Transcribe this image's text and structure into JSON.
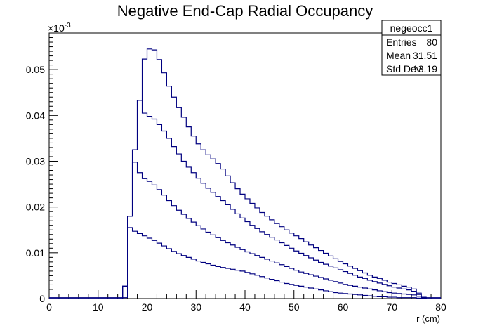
{
  "chart_data": {
    "type": "line",
    "title": "Negative End-Cap Radial Occupancy",
    "xlabel": "r (cm)",
    "ylabel": "",
    "y_exponent_label": "×10",
    "y_exponent": "-3",
    "xlim": [
      0,
      80
    ],
    "ylim": [
      0,
      0.058
    ],
    "x_ticks": [
      0,
      10,
      20,
      30,
      40,
      50,
      60,
      70,
      80
    ],
    "y_ticks": [
      0,
      0.01,
      0.02,
      0.03,
      0.04,
      0.05
    ],
    "y_tick_labels": [
      "0",
      "0.01",
      "0.02",
      "0.03",
      "0.04",
      "0.05"
    ],
    "x_tick_labels": [
      "0",
      "10",
      "20",
      "30",
      "40",
      "50",
      "60",
      "70",
      "80"
    ],
    "bin_edges_start": 0,
    "bin_width": 1,
    "line_color": "#000080",
    "series": [
      {
        "values": [
          0,
          0,
          0,
          0,
          0,
          0,
          0,
          0,
          0,
          0,
          0,
          0,
          0,
          0,
          0,
          0.0027,
          0.018,
          0.0325,
          0.0433,
          0.0523,
          0.0545,
          0.0543,
          0.0522,
          0.0493,
          0.0464,
          0.044,
          0.0417,
          0.0396,
          0.0375,
          0.0355,
          0.0338,
          0.0325,
          0.0314,
          0.0305,
          0.0295,
          0.0283,
          0.0268,
          0.0253,
          0.024,
          0.0228,
          0.0218,
          0.0208,
          0.0198,
          0.0188,
          0.018,
          0.0172,
          0.0164,
          0.0157,
          0.015,
          0.0143,
          0.0137,
          0.0131,
          0.0124,
          0.0117,
          0.0111,
          0.0105,
          0.0099,
          0.0093,
          0.0087,
          0.0081,
          0.0076,
          0.0071,
          0.0066,
          0.0061,
          0.0056,
          0.0051,
          0.0047,
          0.0044,
          0.004,
          0.0036,
          0.0033,
          0.003,
          0.0027,
          0.0025,
          0.0021,
          0.0012,
          0.0003,
          0,
          0,
          0
        ]
      },
      {
        "values": [
          0,
          0,
          0,
          0,
          0,
          0,
          0,
          0,
          0,
          0,
          0,
          0,
          0,
          0,
          0,
          0.0027,
          0.018,
          0.0325,
          0.0433,
          0.0405,
          0.0398,
          0.0392,
          0.038,
          0.0366,
          0.035,
          0.0332,
          0.0316,
          0.03,
          0.0287,
          0.0275,
          0.0263,
          0.0252,
          0.0241,
          0.0232,
          0.0223,
          0.0214,
          0.0205,
          0.0195,
          0.0185,
          0.0176,
          0.0168,
          0.016,
          0.0153,
          0.0146,
          0.014,
          0.0134,
          0.0128,
          0.0122,
          0.0116,
          0.011,
          0.0104,
          0.0099,
          0.0094,
          0.0089,
          0.0084,
          0.0079,
          0.0075,
          0.0071,
          0.0067,
          0.0063,
          0.0059,
          0.0055,
          0.0051,
          0.0047,
          0.0044,
          0.004,
          0.0037,
          0.0034,
          0.0031,
          0.0028,
          0.0025,
          0.0023,
          0.0021,
          0.0019,
          0.0016,
          0.0009,
          0.0002,
          0,
          0,
          0
        ]
      },
      {
        "values": [
          0,
          0,
          0,
          0,
          0,
          0,
          0,
          0,
          0,
          0,
          0,
          0,
          0,
          0,
          0,
          0.0027,
          0.018,
          0.0298,
          0.0275,
          0.0262,
          0.0256,
          0.0248,
          0.0238,
          0.0226,
          0.0214,
          0.0203,
          0.0193,
          0.0184,
          0.0175,
          0.0167,
          0.0159,
          0.0152,
          0.0145,
          0.0139,
          0.0133,
          0.0127,
          0.0122,
          0.0117,
          0.0112,
          0.0107,
          0.0102,
          0.0098,
          0.0094,
          0.009,
          0.0086,
          0.0082,
          0.0078,
          0.0074,
          0.007,
          0.0066,
          0.0062,
          0.0058,
          0.0055,
          0.0052,
          0.0049,
          0.0046,
          0.0043,
          0.004,
          0.0037,
          0.0034,
          0.0031,
          0.0029,
          0.0027,
          0.0025,
          0.0023,
          0.0021,
          0.0019,
          0.0017,
          0.0015,
          0.0013,
          0.0012,
          0.0011,
          0.001,
          0.0009,
          0.0008,
          0.0005,
          0.0001,
          0,
          0,
          0
        ]
      },
      {
        "values": [
          0.0002,
          0.0002,
          0.0002,
          0.0002,
          0.0002,
          0.0002,
          0.0002,
          0.0002,
          0.0002,
          0.0002,
          0.0002,
          0.0002,
          0.0002,
          0.0002,
          0.0002,
          0.0002,
          0.0155,
          0.0147,
          0.0142,
          0.0137,
          0.0132,
          0.0127,
          0.0121,
          0.0115,
          0.0109,
          0.0103,
          0.0098,
          0.0094,
          0.009,
          0.0086,
          0.0082,
          0.0079,
          0.0076,
          0.0073,
          0.007,
          0.0068,
          0.0066,
          0.0064,
          0.0062,
          0.006,
          0.0057,
          0.0054,
          0.0051,
          0.0048,
          0.0045,
          0.0042,
          0.0039,
          0.0036,
          0.0033,
          0.0031,
          0.0029,
          0.0027,
          0.0025,
          0.0023,
          0.0021,
          0.0019,
          0.0017,
          0.0015,
          0.0013,
          0.0012,
          0.0011,
          0.001,
          0.0009,
          0.0008,
          0.0007,
          0.0006,
          0.0005,
          0.0004,
          0.0004,
          0.0003,
          0.0003,
          0.0002,
          0.0002,
          0.0002,
          0.0002,
          0.0001,
          0.0001,
          0.0002,
          0.0002,
          0.0002
        ]
      }
    ],
    "stats_box": {
      "name": "negeocc1",
      "rows": [
        {
          "label": "Entries",
          "value": "80"
        },
        {
          "label": "Mean",
          "value": "31.51"
        },
        {
          "label": "Std Dev",
          "value": "13.19"
        }
      ]
    }
  }
}
